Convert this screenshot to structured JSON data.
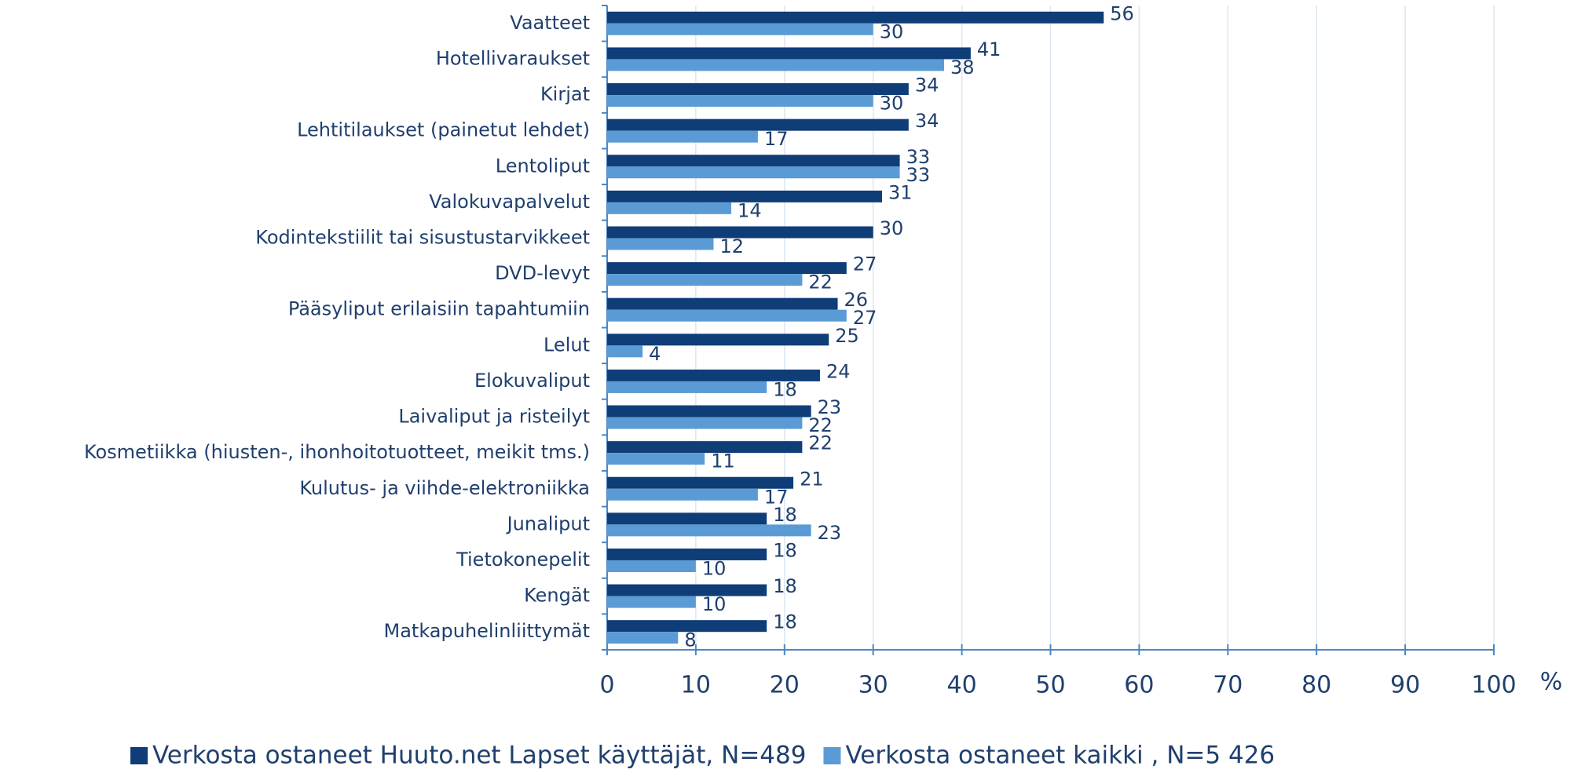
{
  "chart_data": {
    "type": "barh",
    "categories": [
      "Vaatteet",
      "Hotellivaraukset",
      "Kirjat",
      "Lehtitilaukset (painetut lehdet)",
      "Lentoliput",
      "Valokuvapalvelut",
      "Kodintekstiilit tai sisustustarvikkeet",
      "DVD-levyt",
      "Pääsyliput erilaisiin tapahtumiin",
      "Lelut",
      "Elokuvaliput",
      "Laivaliput ja risteilyt",
      "Kosmetiikka (hiusten-, ihonhoitotuotteet, meikit tms.)",
      "Kulutus- ja viihde-elektroniikka",
      "Junaliput",
      "Tietokonepelit",
      "Kengät",
      "Matkapuhelinliittymät"
    ],
    "series": [
      {
        "name": "Verkosta ostaneet Huuto.net Lapset käyttäjät, N=489",
        "color": "#0e3d78",
        "values": [
          56,
          41,
          34,
          34,
          33,
          31,
          30,
          27,
          26,
          25,
          24,
          23,
          22,
          21,
          18,
          18,
          18,
          18
        ]
      },
      {
        "name": "Verkosta ostaneet kaikki , N=5 426",
        "color": "#5b9bd5",
        "values": [
          30,
          38,
          30,
          17,
          33,
          14,
          12,
          22,
          27,
          4,
          18,
          22,
          11,
          17,
          23,
          10,
          10,
          8
        ]
      }
    ],
    "xlabel": "%",
    "xlim": [
      0,
      100
    ],
    "xticks": [
      0,
      10,
      20,
      30,
      40,
      50,
      60,
      70,
      80,
      90,
      100
    ],
    "grid": true
  }
}
